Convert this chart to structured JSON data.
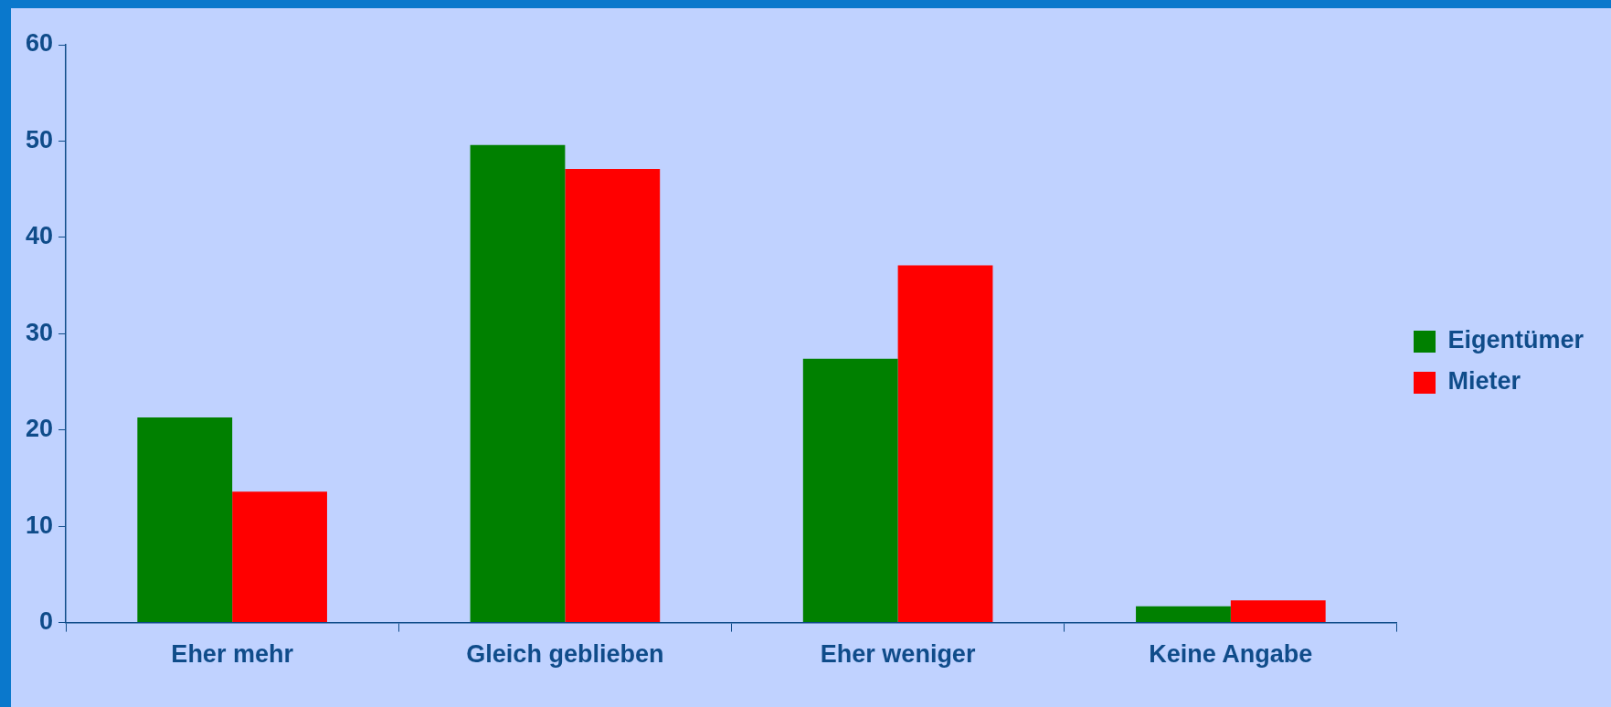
{
  "chart_data": {
    "type": "bar",
    "categories": [
      "Eher mehr",
      "Gleich geblieben",
      "Eher weniger",
      "Keine Angabe"
    ],
    "series": [
      {
        "name": "Eigentümer",
        "color": "#008000",
        "values": [
          21.3,
          49.6,
          27.4,
          1.7
        ]
      },
      {
        "name": "Mieter",
        "color": "#ff0000",
        "values": [
          13.6,
          47.1,
          37.1,
          2.3
        ]
      }
    ],
    "ylim": [
      0,
      60
    ],
    "yticks": [
      0,
      10,
      20,
      30,
      40,
      50,
      60
    ],
    "grid": false,
    "legend": "right"
  }
}
